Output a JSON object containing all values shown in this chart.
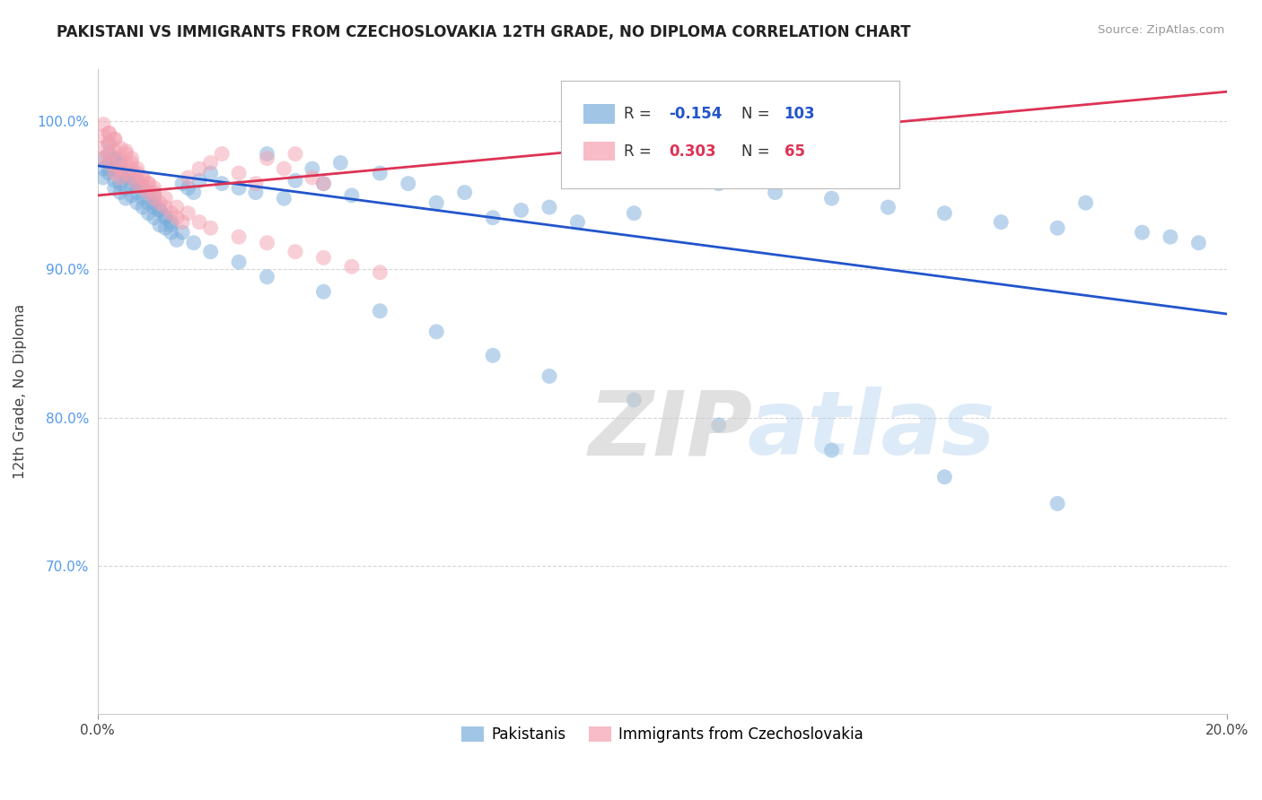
{
  "title": "PAKISTANI VS IMMIGRANTS FROM CZECHOSLOVAKIA 12TH GRADE, NO DIPLOMA CORRELATION CHART",
  "source": "Source: ZipAtlas.com",
  "ylabel": "12th Grade, No Diploma",
  "xmin": 0.0,
  "xmax": 0.2,
  "ymin": 0.6,
  "ymax": 1.035,
  "r_blue": -0.154,
  "n_blue": 103,
  "r_pink": 0.303,
  "n_pink": 65,
  "blue_color": "#7AADDB",
  "pink_color": "#F4A0B0",
  "trend_blue": "#2255CC",
  "trend_pink": "#DD3355",
  "watermark_zip": "ZIP",
  "watermark_atlas": "atlas",
  "legend_labels": [
    "Pakistanis",
    "Immigrants from Czechoslovakia"
  ],
  "ytick_labels": [
    "100.0%",
    "90.0%",
    "80.0%",
    "70.0%"
  ],
  "ytick_values": [
    1.0,
    0.9,
    0.8,
    0.7
  ],
  "blue_trend_y0": 0.97,
  "blue_trend_y1": 0.87,
  "pink_trend_y0": 0.95,
  "pink_trend_y1": 1.02,
  "blue_x": [
    0.001,
    0.001,
    0.001,
    0.002,
    0.002,
    0.002,
    0.002,
    0.003,
    0.003,
    0.003,
    0.003,
    0.004,
    0.004,
    0.004,
    0.004,
    0.005,
    0.005,
    0.005,
    0.006,
    0.006,
    0.006,
    0.007,
    0.007,
    0.007,
    0.008,
    0.008,
    0.008,
    0.009,
    0.009,
    0.01,
    0.01,
    0.01,
    0.011,
    0.011,
    0.012,
    0.012,
    0.013,
    0.013,
    0.014,
    0.015,
    0.016,
    0.017,
    0.018,
    0.02,
    0.022,
    0.025,
    0.028,
    0.03,
    0.033,
    0.035,
    0.038,
    0.04,
    0.043,
    0.045,
    0.05,
    0.055,
    0.06,
    0.065,
    0.07,
    0.075,
    0.08,
    0.085,
    0.09,
    0.095,
    0.1,
    0.11,
    0.12,
    0.13,
    0.14,
    0.15,
    0.16,
    0.17,
    0.175,
    0.185,
    0.19,
    0.195,
    0.002,
    0.003,
    0.004,
    0.005,
    0.006,
    0.007,
    0.008,
    0.009,
    0.01,
    0.011,
    0.012,
    0.013,
    0.015,
    0.017,
    0.02,
    0.025,
    0.03,
    0.04,
    0.05,
    0.06,
    0.07,
    0.08,
    0.095,
    0.11,
    0.13,
    0.15,
    0.17
  ],
  "blue_y": [
    0.975,
    0.968,
    0.962,
    0.972,
    0.965,
    0.978,
    0.985,
    0.96,
    0.968,
    0.975,
    0.955,
    0.958,
    0.965,
    0.97,
    0.952,
    0.955,
    0.962,
    0.948,
    0.95,
    0.958,
    0.965,
    0.945,
    0.952,
    0.96,
    0.942,
    0.948,
    0.956,
    0.938,
    0.945,
    0.935,
    0.942,
    0.95,
    0.93,
    0.94,
    0.928,
    0.936,
    0.925,
    0.932,
    0.92,
    0.958,
    0.955,
    0.952,
    0.96,
    0.965,
    0.958,
    0.955,
    0.952,
    0.978,
    0.948,
    0.96,
    0.968,
    0.958,
    0.972,
    0.95,
    0.965,
    0.958,
    0.945,
    0.952,
    0.935,
    0.94,
    0.942,
    0.932,
    0.968,
    0.938,
    0.962,
    0.958,
    0.952,
    0.948,
    0.942,
    0.938,
    0.932,
    0.928,
    0.945,
    0.925,
    0.922,
    0.918,
    0.968,
    0.975,
    0.972,
    0.965,
    0.962,
    0.958,
    0.955,
    0.952,
    0.945,
    0.94,
    0.935,
    0.93,
    0.925,
    0.918,
    0.912,
    0.905,
    0.895,
    0.885,
    0.872,
    0.858,
    0.842,
    0.828,
    0.812,
    0.795,
    0.778,
    0.76,
    0.742
  ],
  "pink_x": [
    0.001,
    0.001,
    0.001,
    0.002,
    0.002,
    0.002,
    0.002,
    0.003,
    0.003,
    0.003,
    0.003,
    0.004,
    0.004,
    0.004,
    0.005,
    0.005,
    0.005,
    0.006,
    0.006,
    0.006,
    0.007,
    0.007,
    0.008,
    0.008,
    0.009,
    0.009,
    0.01,
    0.01,
    0.011,
    0.012,
    0.013,
    0.014,
    0.015,
    0.016,
    0.018,
    0.02,
    0.022,
    0.025,
    0.028,
    0.03,
    0.033,
    0.035,
    0.038,
    0.04,
    0.001,
    0.002,
    0.003,
    0.004,
    0.005,
    0.006,
    0.007,
    0.008,
    0.009,
    0.01,
    0.012,
    0.014,
    0.016,
    0.018,
    0.02,
    0.025,
    0.03,
    0.035,
    0.04,
    0.045,
    0.05
  ],
  "pink_y": [
    0.99,
    0.982,
    0.975,
    0.985,
    0.978,
    0.992,
    0.972,
    0.98,
    0.97,
    0.988,
    0.965,
    0.975,
    0.968,
    0.962,
    0.972,
    0.965,
    0.98,
    0.968,
    0.962,
    0.975,
    0.965,
    0.958,
    0.962,
    0.955,
    0.958,
    0.952,
    0.955,
    0.948,
    0.945,
    0.942,
    0.938,
    0.935,
    0.932,
    0.962,
    0.968,
    0.972,
    0.978,
    0.965,
    0.958,
    0.975,
    0.968,
    0.978,
    0.962,
    0.958,
    0.998,
    0.992,
    0.988,
    0.982,
    0.978,
    0.972,
    0.968,
    0.962,
    0.958,
    0.952,
    0.948,
    0.942,
    0.938,
    0.932,
    0.928,
    0.922,
    0.918,
    0.912,
    0.908,
    0.902,
    0.898
  ]
}
